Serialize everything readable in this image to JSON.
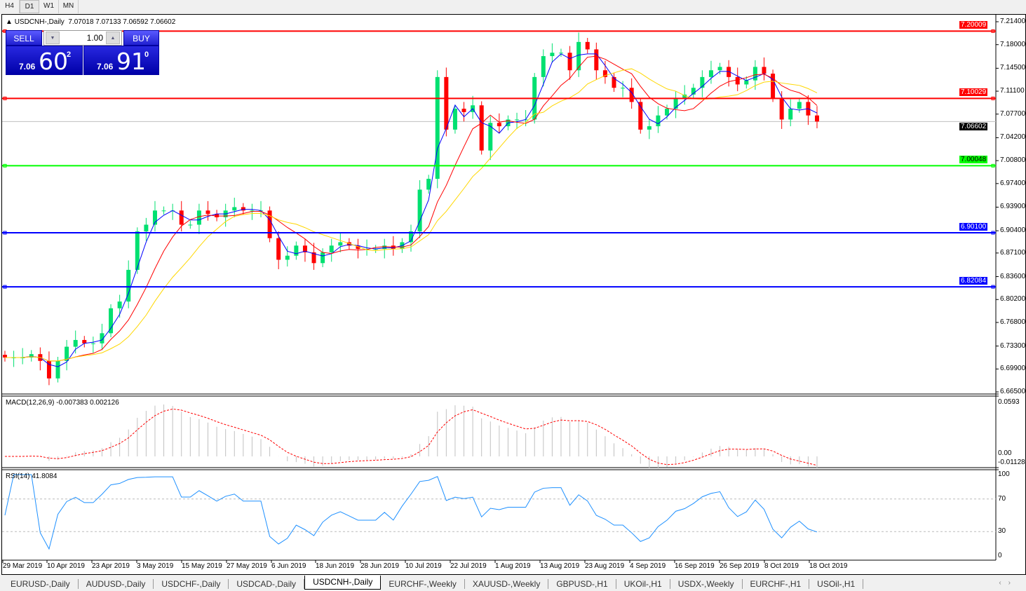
{
  "timeframes": [
    "H4",
    "D1",
    "W1",
    "MN"
  ],
  "active_timeframe": "D1",
  "chart": {
    "title": "USDCNH-,Daily",
    "ohlc": "7.07018 7.07133 7.06592 7.06602"
  },
  "trade_panel": {
    "sell_label": "SELL",
    "buy_label": "BUY",
    "lot": "1.00",
    "sell": {
      "small": "7.06",
      "big": "60",
      "tiny": "2"
    },
    "buy": {
      "small": "7.06",
      "big": "91",
      "tiny": "0"
    }
  },
  "price_axis": [
    "7.21400",
    "7.18000",
    "7.14500",
    "7.11100",
    "7.07700",
    "7.04200",
    "7.00800",
    "6.97400",
    "6.93900",
    "6.90400",
    "6.87100",
    "6.83600",
    "6.80200",
    "6.76800",
    "6.73300",
    "6.69900",
    "6.66500"
  ],
  "hlines": [
    {
      "price": 7.20009,
      "label": "7.20009",
      "color": "#ff0000"
    },
    {
      "price": 7.10029,
      "label": "7.10029",
      "color": "#ff0000"
    },
    {
      "price": 7.00048,
      "label": "7.00048",
      "color": "#00ff00"
    },
    {
      "price": 6.901,
      "label": "6.90100",
      "color": "#0000ff"
    },
    {
      "price": 6.82084,
      "label": "6.82084",
      "color": "#0000ff"
    }
  ],
  "current_price": {
    "price": 7.06602,
    "label": "7.06602"
  },
  "macd": {
    "label": "MACD(12,26,9) -0.007383 0.002126",
    "axis": [
      "0.0593",
      "0.00",
      "-0.011289"
    ]
  },
  "rsi": {
    "label": "RSI(14) 41.8084",
    "axis": [
      "100",
      "70",
      "30",
      "0"
    ]
  },
  "date_axis": [
    "29 Mar 2019",
    "10 Apr 2019",
    "23 Apr 2019",
    "3 May 2019",
    "15 May 2019",
    "27 May 2019",
    "6 Jun 2019",
    "18 Jun 2019",
    "28 Jun 2019",
    "10 Jul 2019",
    "22 Jul 2019",
    "1 Aug 2019",
    "13 Aug 2019",
    "23 Aug 2019",
    "4 Sep 2019",
    "16 Sep 2019",
    "26 Sep 2019",
    "8 Oct 2019",
    "18 Oct 2019"
  ],
  "tabs": [
    "EURUSD-,Daily",
    "AUDUSD-,Daily",
    "USDCHF-,Daily",
    "USDCAD-,Daily",
    "USDCNH-,Daily",
    "EURCHF-,Weekly",
    "XAUUSD-,Weekly",
    "GBPUSD-,H1",
    "UKOil-,H1",
    "USDX-,Weekly",
    "EURCHF-,H1",
    "USOil-,H1"
  ],
  "active_tab": "USDCNH-,Daily",
  "colors": {
    "bull": "#00e070",
    "bear": "#ff0000",
    "ma_fast": "#0000ff",
    "ma_mid": "#ff0000",
    "ma_slow": "#ffd700",
    "rsi": "#1e90ff",
    "macd_signal": "#ff0000",
    "macd_hist": "#c0c0c0"
  },
  "chart_data": {
    "type": "candlestick",
    "symbol": "USDCNH",
    "period": "Daily",
    "ylim": [
      6.665,
      7.214
    ],
    "close": [
      6.716,
      6.716,
      6.716,
      6.721,
      6.711,
      6.685,
      6.711,
      6.732,
      6.742,
      6.737,
      6.737,
      6.752,
      6.789,
      6.799,
      6.846,
      6.903,
      6.913,
      6.934,
      6.934,
      6.934,
      6.913,
      6.913,
      6.934,
      6.929,
      6.924,
      6.934,
      6.939,
      6.934,
      6.934,
      6.934,
      6.893,
      6.861,
      6.867,
      6.882,
      6.872,
      6.856,
      6.872,
      6.882,
      6.887,
      6.882,
      6.877,
      6.877,
      6.877,
      6.882,
      6.877,
      6.887,
      6.903,
      6.965,
      6.981,
      7.132,
      7.054,
      7.085,
      7.08,
      7.09,
      7.023,
      7.064,
      7.059,
      7.069,
      7.069,
      7.069,
      7.132,
      7.163,
      7.168,
      7.168,
      7.142,
      7.184,
      7.173,
      7.142,
      7.132,
      7.116,
      7.116,
      7.095,
      7.054,
      7.059,
      7.075,
      7.085,
      7.101,
      7.106,
      7.116,
      7.132,
      7.142,
      7.147,
      7.132,
      7.121,
      7.127,
      7.147,
      7.137,
      7.101,
      7.069,
      7.085,
      7.095,
      7.075,
      7.066
    ]
  }
}
